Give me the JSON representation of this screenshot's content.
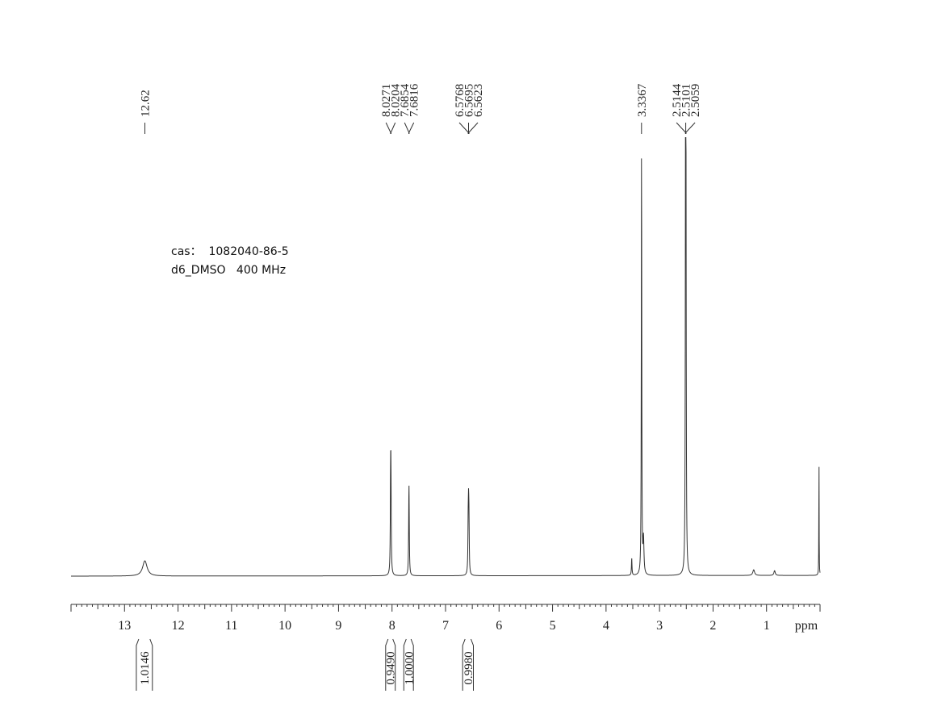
{
  "sample": {
    "line1": "cas：  1082040-86-5",
    "line2": "d6_DMSO   400 MHz"
  },
  "chart_data": {
    "type": "line",
    "title": "",
    "xlabel": "ppm",
    "ylabel": "",
    "xlim": [
      14.0,
      0.0
    ],
    "x_reversed": true,
    "grid": false,
    "legend": "none",
    "line_color": "#333333",
    "ticks": [
      "13",
      "12",
      "11",
      "10",
      "9",
      "8",
      "7",
      "6",
      "5",
      "4",
      "3",
      "2",
      "1"
    ],
    "peak_labels": [
      {
        "group": [
          {
            "ppm": 12.62,
            "text": "12.62"
          }
        ]
      },
      {
        "group": [
          {
            "ppm": 8.0271,
            "text": "8.0271"
          },
          {
            "ppm": 8.0204,
            "text": "8.0204"
          },
          {
            "ppm": 7.6854,
            "text": "7.6854"
          },
          {
            "ppm": 7.6816,
            "text": "7.6816"
          }
        ]
      },
      {
        "group": [
          {
            "ppm": 6.5768,
            "text": "6.5768"
          },
          {
            "ppm": 6.5695,
            "text": "6.5695"
          },
          {
            "ppm": 6.5623,
            "text": "6.5623"
          }
        ]
      },
      {
        "group": [
          {
            "ppm": 3.3367,
            "text": "3.3367"
          }
        ]
      },
      {
        "group": [
          {
            "ppm": 2.5144,
            "text": "2.5144"
          },
          {
            "ppm": 2.5101,
            "text": "2.5101"
          },
          {
            "ppm": 2.5059,
            "text": "2.5059"
          }
        ]
      }
    ],
    "integrals": [
      {
        "from": 12.78,
        "to": 12.48,
        "value": "1.0146"
      },
      {
        "from": 8.12,
        "to": 7.94,
        "value": "0.9490"
      },
      {
        "from": 7.78,
        "to": 7.6,
        "value": "1.0000"
      },
      {
        "from": 6.68,
        "to": 6.48,
        "value": "0.9980"
      }
    ],
    "peaks": [
      {
        "ppm": 12.62,
        "intensity": 0.035,
        "width": 0.05
      },
      {
        "ppm": 8.0271,
        "intensity": 0.19,
        "width": 0.006
      },
      {
        "ppm": 8.0204,
        "intensity": 0.19,
        "width": 0.006
      },
      {
        "ppm": 7.6854,
        "intensity": 0.115,
        "width": 0.006
      },
      {
        "ppm": 7.6816,
        "intensity": 0.115,
        "width": 0.006
      },
      {
        "ppm": 6.5768,
        "intensity": 0.1,
        "width": 0.006
      },
      {
        "ppm": 6.5695,
        "intensity": 0.12,
        "width": 0.006
      },
      {
        "ppm": 6.5623,
        "intensity": 0.1,
        "width": 0.006
      },
      {
        "ppm": 3.52,
        "intensity": 0.04,
        "width": 0.006
      },
      {
        "ppm": 3.3367,
        "intensity": 1.0,
        "width": 0.005
      },
      {
        "ppm": 3.3,
        "intensity": 0.08,
        "width": 0.01
      },
      {
        "ppm": 2.5144,
        "intensity": 0.5,
        "width": 0.005
      },
      {
        "ppm": 2.5101,
        "intensity": 0.98,
        "width": 0.005
      },
      {
        "ppm": 2.5059,
        "intensity": 0.5,
        "width": 0.005
      },
      {
        "ppm": 1.24,
        "intensity": 0.013,
        "width": 0.02
      },
      {
        "ppm": 0.85,
        "intensity": 0.011,
        "width": 0.015
      },
      {
        "ppm": 0.02,
        "intensity": 0.285,
        "width": 0.003
      }
    ]
  }
}
